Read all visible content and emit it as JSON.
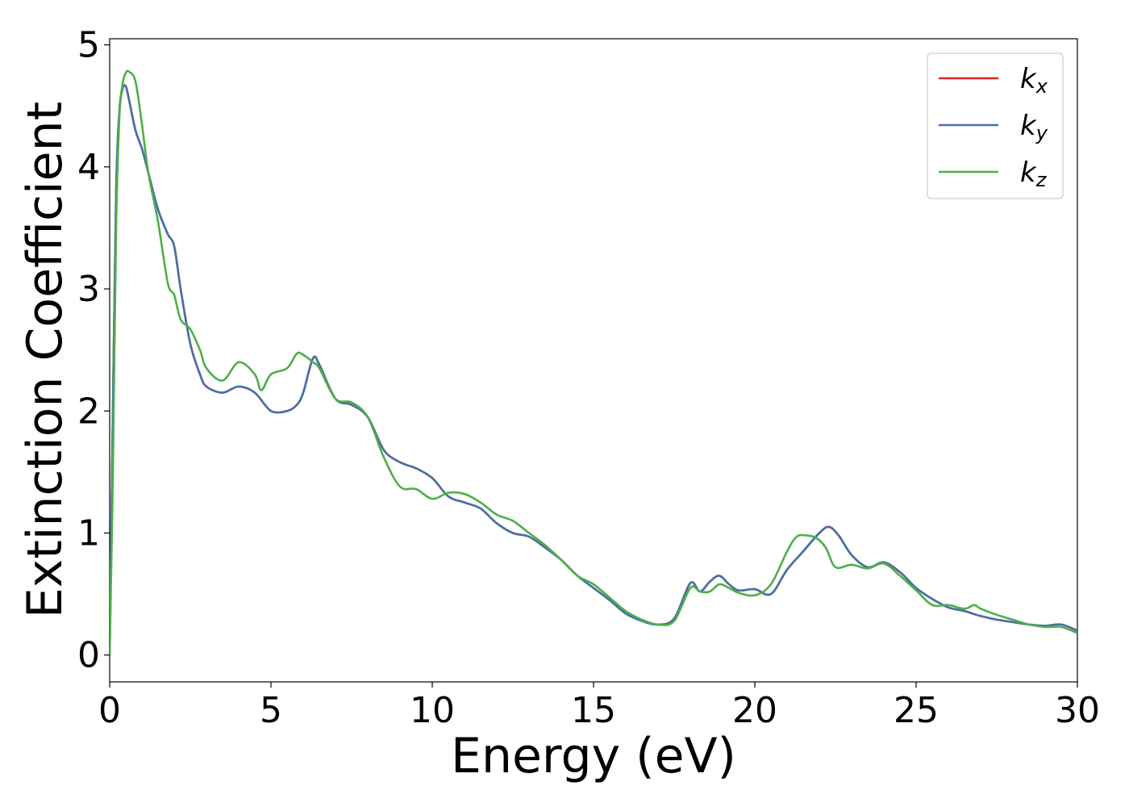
{
  "chart_data": {
    "type": "line",
    "xlabel": "Energy (eV)",
    "ylabel": "Extinction Coefficient",
    "xlim": [
      0,
      30
    ],
    "ylim": [
      -0.22,
      5.05
    ],
    "xticks": [
      0,
      5,
      10,
      15,
      20,
      25,
      30
    ],
    "yticks": [
      0,
      1,
      2,
      3,
      4,
      5
    ],
    "grid": false,
    "legend_position": "top-right",
    "series": [
      {
        "name": "k_x",
        "label_base": "k",
        "label_sub": "x",
        "color": "#d62728",
        "x": [
          0,
          0.1,
          0.2,
          0.3,
          0.4,
          0.5,
          0.6,
          0.8,
          1.0,
          1.2,
          1.5,
          1.8,
          2.0,
          2.2,
          2.5,
          2.8,
          3.0,
          3.5,
          4.0,
          4.5,
          5.0,
          5.5,
          5.8,
          6.0,
          6.3,
          6.5,
          7.0,
          7.5,
          8.0,
          8.5,
          9.0,
          9.5,
          10.0,
          10.5,
          11.0,
          11.5,
          12.0,
          12.5,
          13.0,
          13.5,
          14.0,
          14.5,
          15.0,
          15.5,
          16.0,
          16.5,
          17.0,
          17.5,
          18.0,
          18.3,
          18.6,
          18.9,
          19.2,
          19.5,
          20.0,
          20.5,
          21.0,
          21.5,
          22.0,
          22.3,
          22.6,
          23.0,
          23.5,
          24.0,
          24.5,
          25.0,
          25.5,
          26.0,
          26.5,
          27.0,
          27.5,
          28.0,
          28.5,
          29.0,
          29.5,
          30.0
        ],
        "y": [
          0.0,
          2.0,
          3.8,
          4.45,
          4.64,
          4.66,
          4.55,
          4.3,
          4.15,
          3.95,
          3.65,
          3.45,
          3.35,
          3.0,
          2.55,
          2.3,
          2.2,
          2.15,
          2.2,
          2.15,
          2.0,
          2.0,
          2.05,
          2.15,
          2.43,
          2.38,
          2.1,
          2.05,
          1.95,
          1.68,
          1.58,
          1.53,
          1.45,
          1.3,
          1.25,
          1.2,
          1.08,
          1.0,
          0.97,
          0.88,
          0.78,
          0.65,
          0.55,
          0.45,
          0.34,
          0.28,
          0.25,
          0.3,
          0.59,
          0.52,
          0.6,
          0.65,
          0.58,
          0.53,
          0.54,
          0.5,
          0.7,
          0.85,
          1.0,
          1.05,
          0.98,
          0.82,
          0.72,
          0.76,
          0.68,
          0.55,
          0.46,
          0.39,
          0.36,
          0.32,
          0.29,
          0.27,
          0.25,
          0.24,
          0.25,
          0.2
        ]
      },
      {
        "name": "k_y",
        "label_base": "k",
        "label_sub": "y",
        "color": "#4472a8",
        "x": [
          0,
          0.1,
          0.2,
          0.3,
          0.4,
          0.5,
          0.6,
          0.8,
          1.0,
          1.2,
          1.5,
          1.8,
          2.0,
          2.2,
          2.5,
          2.8,
          3.0,
          3.5,
          4.0,
          4.5,
          5.0,
          5.5,
          5.8,
          6.0,
          6.3,
          6.5,
          7.0,
          7.5,
          8.0,
          8.5,
          9.0,
          9.5,
          10.0,
          10.5,
          11.0,
          11.5,
          12.0,
          12.5,
          13.0,
          13.5,
          14.0,
          14.5,
          15.0,
          15.5,
          16.0,
          16.5,
          17.0,
          17.5,
          18.0,
          18.3,
          18.6,
          18.9,
          19.2,
          19.5,
          20.0,
          20.5,
          21.0,
          21.5,
          22.0,
          22.3,
          22.6,
          23.0,
          23.5,
          24.0,
          24.5,
          25.0,
          25.5,
          26.0,
          26.5,
          27.0,
          27.5,
          28.0,
          28.5,
          29.0,
          29.5,
          30.0
        ],
        "y": [
          0.0,
          2.0,
          3.8,
          4.45,
          4.64,
          4.66,
          4.55,
          4.3,
          4.15,
          3.95,
          3.65,
          3.45,
          3.35,
          3.0,
          2.55,
          2.3,
          2.2,
          2.15,
          2.2,
          2.15,
          2.0,
          2.0,
          2.05,
          2.15,
          2.43,
          2.38,
          2.1,
          2.05,
          1.95,
          1.68,
          1.58,
          1.53,
          1.45,
          1.3,
          1.25,
          1.2,
          1.08,
          1.0,
          0.97,
          0.88,
          0.78,
          0.65,
          0.55,
          0.45,
          0.34,
          0.28,
          0.25,
          0.3,
          0.59,
          0.52,
          0.6,
          0.65,
          0.58,
          0.53,
          0.54,
          0.5,
          0.7,
          0.85,
          1.0,
          1.05,
          0.98,
          0.82,
          0.72,
          0.76,
          0.68,
          0.55,
          0.46,
          0.39,
          0.36,
          0.32,
          0.29,
          0.27,
          0.25,
          0.24,
          0.25,
          0.2
        ]
      },
      {
        "name": "k_z",
        "label_base": "k",
        "label_sub": "z",
        "color": "#4daf4a",
        "x": [
          0,
          0.1,
          0.2,
          0.3,
          0.4,
          0.5,
          0.6,
          0.8,
          1.0,
          1.2,
          1.5,
          1.8,
          2.0,
          2.2,
          2.5,
          2.8,
          3.0,
          3.5,
          4.0,
          4.5,
          4.7,
          5.0,
          5.5,
          5.8,
          6.0,
          6.3,
          6.5,
          7.0,
          7.5,
          8.0,
          8.5,
          9.0,
          9.5,
          10.0,
          10.5,
          11.0,
          11.5,
          12.0,
          12.5,
          13.0,
          13.5,
          14.0,
          14.5,
          15.0,
          15.5,
          16.0,
          16.5,
          17.0,
          17.5,
          18.0,
          18.3,
          18.6,
          18.9,
          19.2,
          19.5,
          20.0,
          20.5,
          21.0,
          21.3,
          21.6,
          21.9,
          22.2,
          22.5,
          23.0,
          23.5,
          24.0,
          24.5,
          25.0,
          25.5,
          26.0,
          26.5,
          26.8,
          27.0,
          27.5,
          28.0,
          28.5,
          29.0,
          29.5,
          30.0
        ],
        "y": [
          0.0,
          1.5,
          3.5,
          4.4,
          4.68,
          4.77,
          4.78,
          4.7,
          4.35,
          3.95,
          3.55,
          3.05,
          2.95,
          2.75,
          2.67,
          2.5,
          2.35,
          2.25,
          2.4,
          2.3,
          2.17,
          2.3,
          2.35,
          2.47,
          2.46,
          2.4,
          2.35,
          2.1,
          2.07,
          1.95,
          1.62,
          1.38,
          1.36,
          1.28,
          1.33,
          1.32,
          1.25,
          1.15,
          1.1,
          1.0,
          0.9,
          0.78,
          0.65,
          0.58,
          0.47,
          0.36,
          0.29,
          0.25,
          0.28,
          0.55,
          0.52,
          0.52,
          0.58,
          0.55,
          0.51,
          0.49,
          0.58,
          0.85,
          0.97,
          0.98,
          0.96,
          0.88,
          0.72,
          0.74,
          0.71,
          0.75,
          0.65,
          0.53,
          0.41,
          0.41,
          0.38,
          0.41,
          0.38,
          0.33,
          0.29,
          0.25,
          0.23,
          0.23,
          0.18
        ]
      }
    ]
  }
}
